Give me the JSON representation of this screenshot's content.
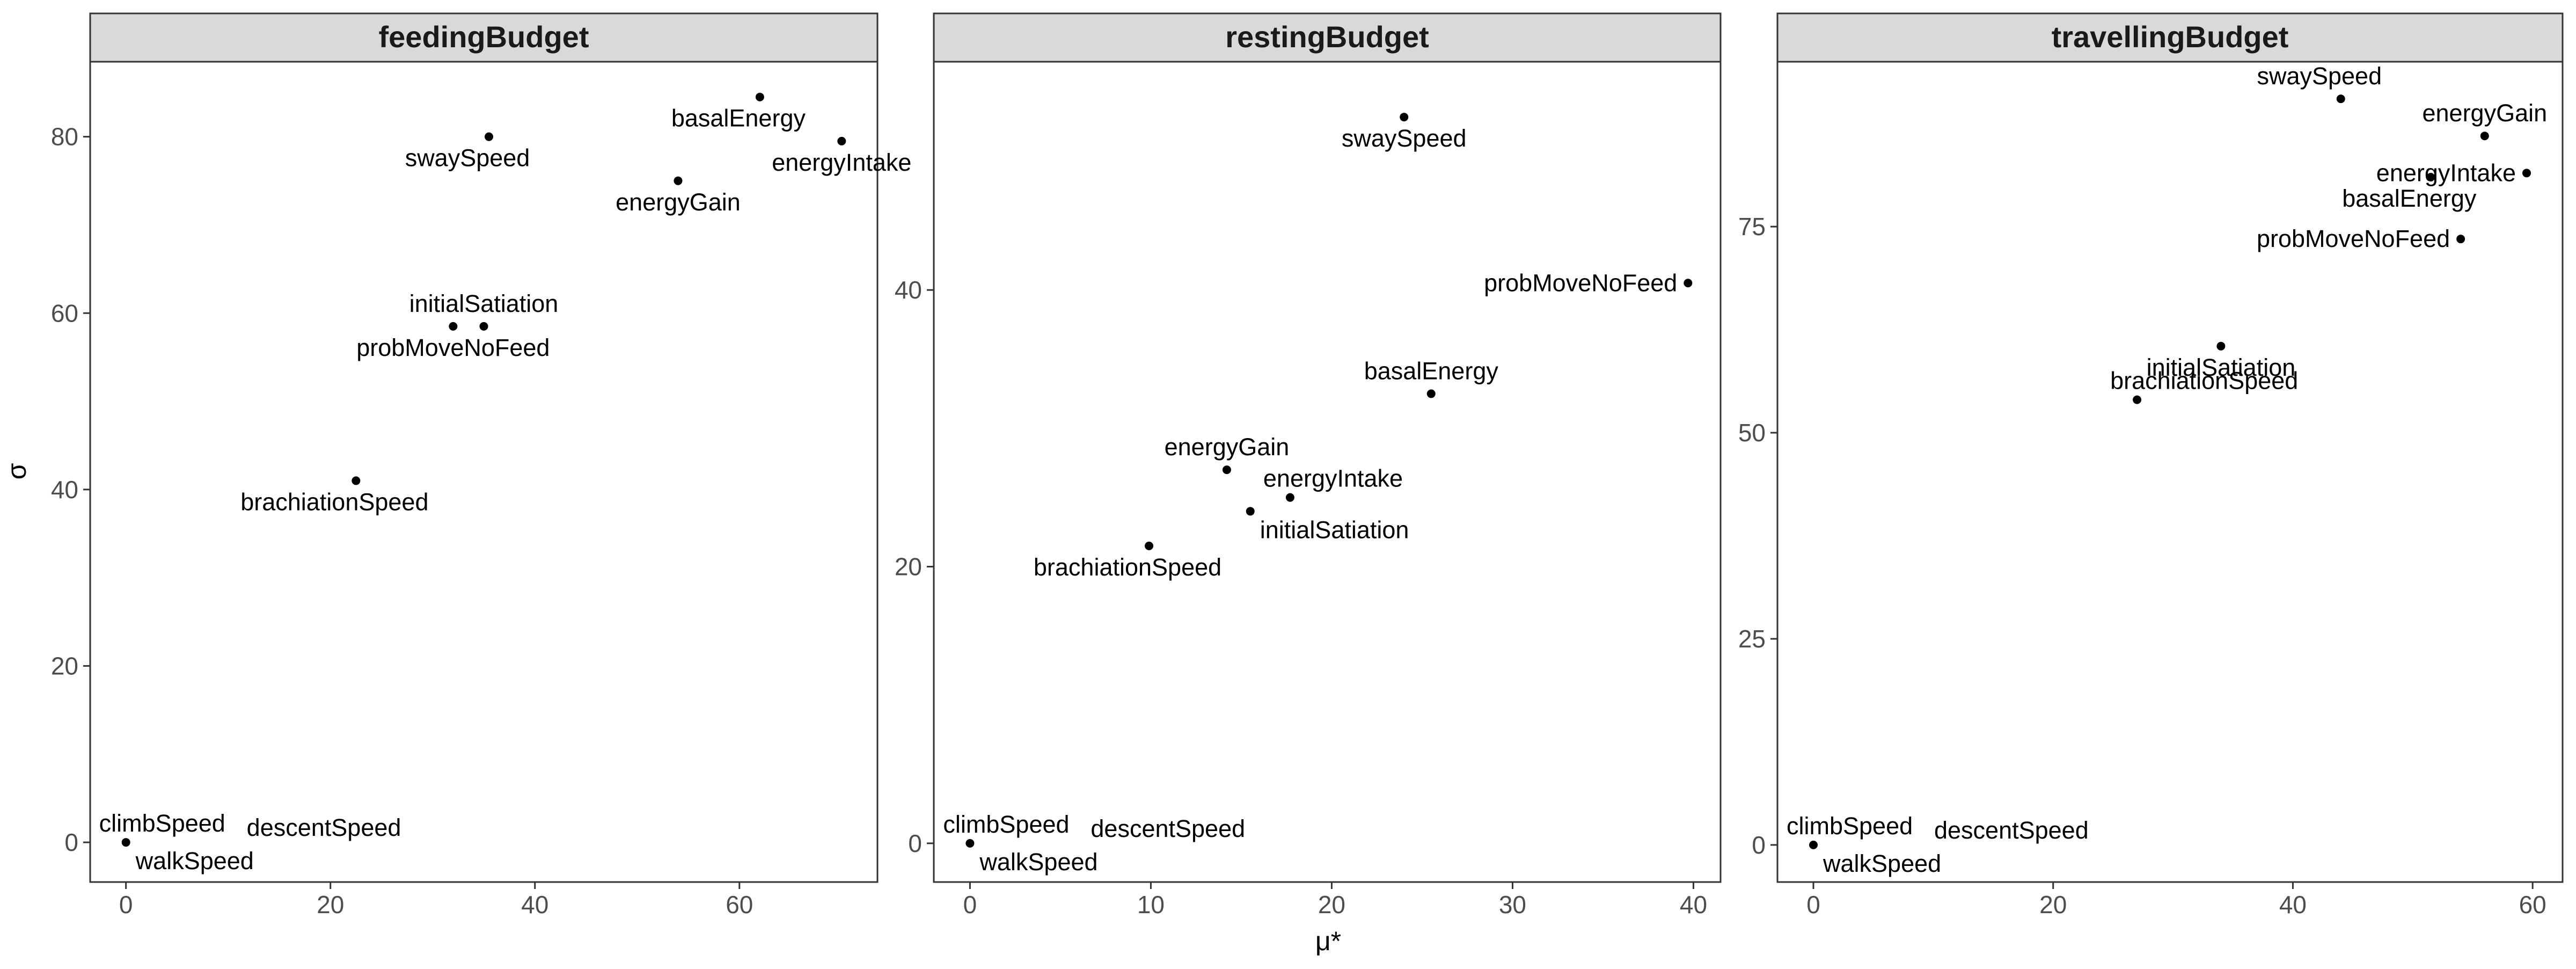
{
  "chart_data": {
    "type": "scatter",
    "xlabel": "μ*",
    "ylabel": "σ",
    "grid": false,
    "panels": [
      {
        "name": "feedingBudget",
        "xlim": [
          -3.5,
          73.5
        ],
        "ylim": [
          -4.5,
          88.5
        ],
        "xticks": [
          0,
          20,
          40,
          60
        ],
        "yticks": [
          0,
          20,
          40,
          60,
          80
        ],
        "points": [
          {
            "label": "basalEnergy",
            "x": 62,
            "y": 84.5,
            "pos": "below-left"
          },
          {
            "label": "energyIntake",
            "x": 70,
            "y": 79.5,
            "pos": "below"
          },
          {
            "label": "swaySpeed",
            "x": 35.5,
            "y": 80,
            "pos": "below-left"
          },
          {
            "label": "energyGain",
            "x": 54,
            "y": 75,
            "pos": "below"
          },
          {
            "label": "initialSatiation",
            "x": 35,
            "y": 58.5,
            "pos": "above"
          },
          {
            "label": "probMoveNoFeed",
            "x": 32,
            "y": 58.5,
            "pos": "below"
          },
          {
            "label": "brachiationSpeed",
            "x": 22.5,
            "y": 41,
            "pos": "below-left"
          },
          {
            "label": "climbSpeed",
            "x": 0,
            "y": 0,
            "pos": "above-right"
          },
          {
            "label": "descentSpeed",
            "x": 0,
            "y": 0,
            "pos": "far-right"
          },
          {
            "label": "walkSpeed",
            "x": 0,
            "y": 0,
            "pos": "below-right"
          }
        ]
      },
      {
        "name": "restingBudget",
        "xlim": [
          -2.0,
          41.5
        ],
        "ylim": [
          -2.8,
          56.5
        ],
        "xticks": [
          0,
          10,
          20,
          30,
          40
        ],
        "yticks": [
          0,
          20,
          40
        ],
        "points": [
          {
            "label": "swaySpeed",
            "x": 24,
            "y": 52.5,
            "pos": "below"
          },
          {
            "label": "probMoveNoFeed",
            "x": 39.7,
            "y": 40.5,
            "pos": "left"
          },
          {
            "label": "basalEnergy",
            "x": 25.5,
            "y": 32.5,
            "pos": "above"
          },
          {
            "label": "energyGain",
            "x": 14.2,
            "y": 27,
            "pos": "above"
          },
          {
            "label": "energyIntake",
            "x": 17.7,
            "y": 25,
            "pos": "above-right"
          },
          {
            "label": "initialSatiation",
            "x": 15.5,
            "y": 24,
            "pos": "below-right"
          },
          {
            "label": "brachiationSpeed",
            "x": 9.9,
            "y": 21.5,
            "pos": "below-left"
          },
          {
            "label": "climbSpeed",
            "x": 0,
            "y": 0,
            "pos": "above-right"
          },
          {
            "label": "descentSpeed",
            "x": 0,
            "y": 0,
            "pos": "far-right"
          },
          {
            "label": "walkSpeed",
            "x": 0,
            "y": 0,
            "pos": "below-right"
          }
        ]
      },
      {
        "name": "travellingBudget",
        "xlim": [
          -3.0,
          62.5
        ],
        "ylim": [
          -4.5,
          95.0
        ],
        "xticks": [
          0,
          20,
          40,
          60
        ],
        "yticks": [
          0,
          25,
          50,
          75
        ],
        "points": [
          {
            "label": "swaySpeed",
            "x": 44,
            "y": 90.5,
            "pos": "above-left"
          },
          {
            "label": "energyGain",
            "x": 56,
            "y": 86,
            "pos": "above"
          },
          {
            "label": "energyIntake",
            "x": 59.5,
            "y": 81.5,
            "pos": "left"
          },
          {
            "label": "basalEnergy",
            "x": 51.5,
            "y": 81,
            "pos": "below-left"
          },
          {
            "label": "probMoveNoFeed",
            "x": 54,
            "y": 73.5,
            "pos": "left"
          },
          {
            "label": "initialSatiation",
            "x": 34,
            "y": 60.5,
            "pos": "below"
          },
          {
            "label": "brachiationSpeed",
            "x": 27,
            "y": 54,
            "pos": "above-right"
          },
          {
            "label": "climbSpeed",
            "x": 0,
            "y": 0,
            "pos": "above-right"
          },
          {
            "label": "descentSpeed",
            "x": 0,
            "y": 0,
            "pos": "far-right"
          },
          {
            "label": "walkSpeed",
            "x": 0,
            "y": 0,
            "pos": "below-right"
          }
        ]
      }
    ]
  }
}
